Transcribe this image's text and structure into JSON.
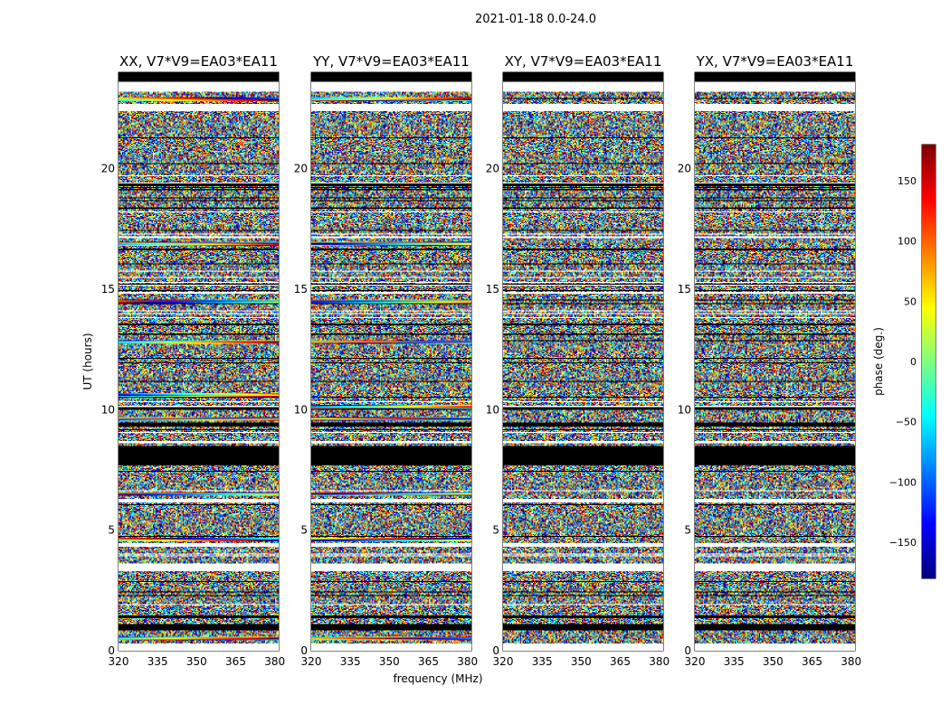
{
  "chart_data": {
    "type": "heatmap",
    "suptitle": "2021-01-18 0.0-24.0",
    "xlabel": "frequency (MHz)",
    "ylabel": "UT (hours)",
    "xlim": [
      320,
      381.5
    ],
    "ylim": [
      0,
      24
    ],
    "xticks": [
      320,
      335,
      350,
      365,
      380
    ],
    "yticks": [
      0,
      5,
      10,
      15,
      20
    ],
    "panels": [
      {
        "title": "XX, V7*V9=EA03*EA11",
        "strong_bands_hours": [
          0.5,
          4.6,
          6.5,
          9.6,
          10.6,
          12.8,
          14.5,
          16.9,
          22.9
        ]
      },
      {
        "title": "YY, V7*V9=EA03*EA11",
        "strong_bands_hours": [
          0.5,
          4.6,
          6.5,
          9.6,
          10.1,
          12.8,
          14.5,
          16.9,
          22.9
        ]
      },
      {
        "title": "XY, V7*V9=EA03*EA11",
        "strong_bands_hours": []
      },
      {
        "title": "YX, V7*V9=EA03*EA11",
        "strong_bands_hours": []
      }
    ],
    "blank_bands_hours": [
      [
        3.3,
        3.6
      ],
      [
        4.3,
        4.45
      ],
      [
        6.2,
        6.3
      ],
      [
        8.6,
        8.7
      ],
      [
        14.8,
        14.9
      ],
      [
        17.1,
        17.2
      ],
      [
        22.4,
        22.7
      ],
      [
        23.2,
        23.4
      ]
    ],
    "black_bands_hours": [
      [
        0.85,
        1.1
      ],
      [
        1.35,
        1.45
      ],
      [
        7.7,
        8.5
      ],
      [
        9.3,
        9.45
      ],
      [
        10.0,
        10.1
      ],
      [
        16.6,
        16.7
      ],
      [
        19.3,
        19.4
      ],
      [
        23.6,
        24.0
      ]
    ],
    "colorbar": {
      "label": "phase (deg.)",
      "range": [
        -180,
        180
      ],
      "ticks": [
        -150,
        -100,
        -50,
        0,
        50,
        100,
        150
      ],
      "colormap": "jet"
    }
  }
}
